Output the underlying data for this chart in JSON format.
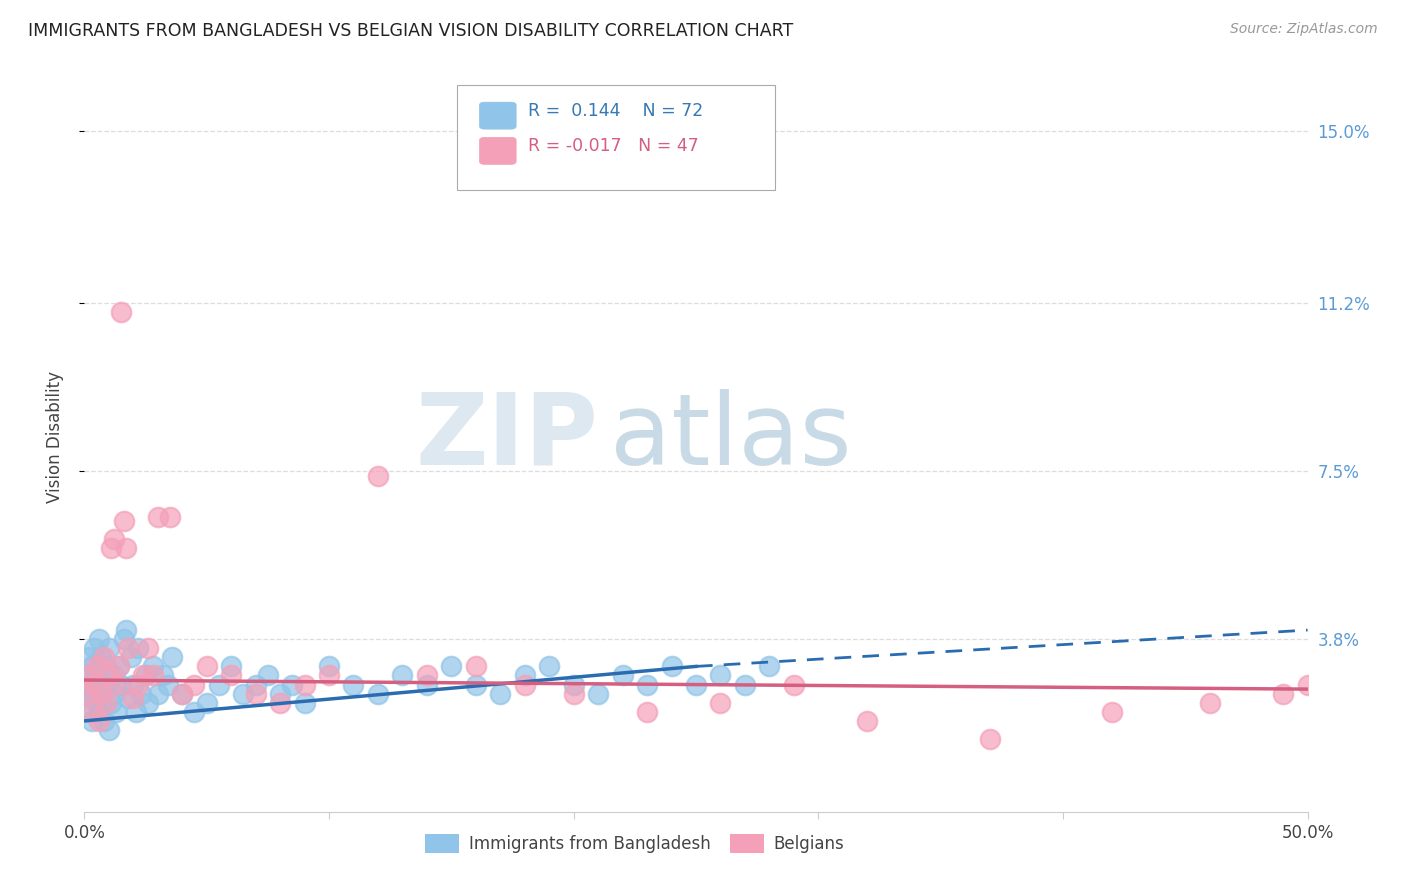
{
  "title": "IMMIGRANTS FROM BANGLADESH VS BELGIAN VISION DISABILITY CORRELATION CHART",
  "source": "Source: ZipAtlas.com",
  "ylabel": "Vision Disability",
  "xlim": [
    0.0,
    0.5
  ],
  "ylim": [
    0.0,
    0.165
  ],
  "xtick_vals": [
    0.0,
    0.1,
    0.2,
    0.3,
    0.4,
    0.5
  ],
  "xticklabels": [
    "0.0%",
    "",
    "",
    "",
    "",
    "50.0%"
  ],
  "yticks": [
    0.038,
    0.075,
    0.112,
    0.15
  ],
  "yticklabels": [
    "3.8%",
    "7.5%",
    "11.2%",
    "15.0%"
  ],
  "blue_color": "#90C4E8",
  "pink_color": "#F4A0B8",
  "blue_line_color": "#2B6CB0",
  "pink_line_color": "#D45F80",
  "blue_R": 0.144,
  "blue_N": 72,
  "pink_R": -0.017,
  "pink_N": 47,
  "legend1_label": "Immigrants from Bangladesh",
  "legend2_label": "Belgians",
  "watermark_zip": "ZIP",
  "watermark_atlas": "atlas",
  "blue_scatter_x": [
    0.001,
    0.001,
    0.002,
    0.002,
    0.002,
    0.003,
    0.003,
    0.003,
    0.004,
    0.004,
    0.005,
    0.005,
    0.006,
    0.006,
    0.007,
    0.007,
    0.008,
    0.008,
    0.009,
    0.01,
    0.01,
    0.011,
    0.012,
    0.012,
    0.013,
    0.014,
    0.015,
    0.016,
    0.017,
    0.018,
    0.019,
    0.02,
    0.021,
    0.022,
    0.023,
    0.025,
    0.026,
    0.028,
    0.03,
    0.032,
    0.034,
    0.036,
    0.04,
    0.045,
    0.05,
    0.055,
    0.06,
    0.065,
    0.07,
    0.075,
    0.08,
    0.085,
    0.09,
    0.1,
    0.11,
    0.12,
    0.13,
    0.14,
    0.15,
    0.16,
    0.17,
    0.18,
    0.19,
    0.2,
    0.21,
    0.22,
    0.23,
    0.24,
    0.25,
    0.26,
    0.27,
    0.28
  ],
  "blue_scatter_y": [
    0.026,
    0.03,
    0.022,
    0.028,
    0.034,
    0.02,
    0.025,
    0.032,
    0.028,
    0.036,
    0.024,
    0.03,
    0.038,
    0.022,
    0.026,
    0.034,
    0.02,
    0.028,
    0.032,
    0.018,
    0.036,
    0.024,
    0.03,
    0.026,
    0.022,
    0.032,
    0.028,
    0.038,
    0.04,
    0.025,
    0.034,
    0.028,
    0.022,
    0.036,
    0.026,
    0.03,
    0.024,
    0.032,
    0.026,
    0.03,
    0.028,
    0.034,
    0.026,
    0.022,
    0.024,
    0.028,
    0.032,
    0.026,
    0.028,
    0.03,
    0.026,
    0.028,
    0.024,
    0.032,
    0.028,
    0.026,
    0.03,
    0.028,
    0.032,
    0.028,
    0.026,
    0.03,
    0.032,
    0.028,
    0.026,
    0.03,
    0.028,
    0.032,
    0.028,
    0.03,
    0.028,
    0.032
  ],
  "pink_scatter_x": [
    0.001,
    0.002,
    0.003,
    0.004,
    0.005,
    0.006,
    0.007,
    0.008,
    0.009,
    0.01,
    0.011,
    0.012,
    0.013,
    0.014,
    0.015,
    0.016,
    0.017,
    0.018,
    0.02,
    0.022,
    0.024,
    0.026,
    0.028,
    0.03,
    0.035,
    0.04,
    0.045,
    0.05,
    0.06,
    0.07,
    0.08,
    0.09,
    0.1,
    0.12,
    0.14,
    0.16,
    0.18,
    0.2,
    0.23,
    0.26,
    0.29,
    0.32,
    0.37,
    0.42,
    0.46,
    0.49,
    0.5
  ],
  "pink_scatter_y": [
    0.026,
    0.03,
    0.022,
    0.028,
    0.032,
    0.02,
    0.026,
    0.034,
    0.024,
    0.03,
    0.058,
    0.06,
    0.028,
    0.032,
    0.11,
    0.064,
    0.058,
    0.036,
    0.025,
    0.028,
    0.03,
    0.036,
    0.03,
    0.065,
    0.065,
    0.026,
    0.028,
    0.032,
    0.03,
    0.026,
    0.024,
    0.028,
    0.03,
    0.074,
    0.03,
    0.032,
    0.028,
    0.026,
    0.022,
    0.024,
    0.028,
    0.02,
    0.016,
    0.022,
    0.024,
    0.026,
    0.028
  ],
  "blue_trend_x_start": 0.0,
  "blue_trend_x_solid_end": 0.25,
  "blue_trend_x_dashed_end": 0.5,
  "blue_trend_y_start": 0.02,
  "blue_trend_y_solid_end": 0.032,
  "blue_trend_y_dashed_end": 0.04,
  "pink_trend_x_start": 0.0,
  "pink_trend_x_end": 0.5,
  "pink_trend_y_start": 0.029,
  "pink_trend_y_end": 0.027
}
